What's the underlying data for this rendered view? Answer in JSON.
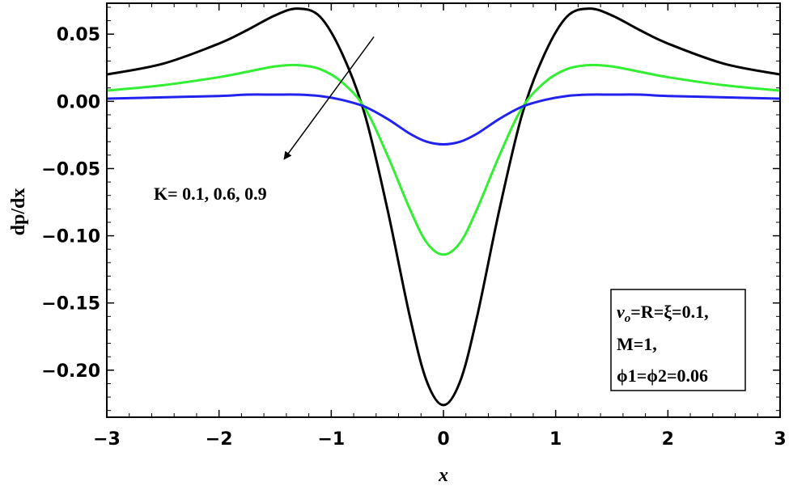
{
  "chart_data": {
    "type": "line",
    "title": "",
    "xlabel": "x",
    "ylabel": "dp/dx",
    "xlim": [
      -3,
      3
    ],
    "ylim": [
      -0.235,
      0.073
    ],
    "x_ticks": [
      -3,
      -2,
      -1,
      0,
      1,
      2,
      3
    ],
    "x_tick_labels": [
      "−3",
      "−2",
      "−1",
      "0",
      "1",
      "2",
      "3"
    ],
    "y_ticks": [
      0.05,
      0.0,
      -0.05,
      -0.1,
      -0.15,
      -0.2
    ],
    "y_tick_labels": [
      "0.05",
      "0.00",
      "−0.05",
      "−0.10",
      "−0.15",
      "−0.20"
    ],
    "grid": false,
    "x": [
      -3.0,
      -2.5,
      -2.0,
      -1.75,
      -1.5,
      -1.3,
      -1.1,
      -0.9,
      -0.7,
      -0.5,
      -0.3,
      -0.15,
      0.0,
      0.15,
      0.3,
      0.5,
      0.7,
      0.9,
      1.1,
      1.3,
      1.5,
      1.75,
      2.0,
      2.5,
      3.0
    ],
    "series": [
      {
        "color": "#000000",
        "values": [
          0.02,
          0.028,
          0.043,
          0.053,
          0.064,
          0.069,
          0.063,
          0.035,
          -0.01,
          -0.08,
          -0.16,
          -0.208,
          -0.226,
          -0.208,
          -0.16,
          -0.08,
          -0.01,
          0.035,
          0.063,
          0.069,
          0.064,
          0.053,
          0.043,
          0.028,
          0.02
        ]
      },
      {
        "color": "#33ee33",
        "values": [
          0.008,
          0.012,
          0.018,
          0.022,
          0.026,
          0.027,
          0.024,
          0.014,
          -0.005,
          -0.04,
          -0.08,
          -0.105,
          -0.114,
          -0.105,
          -0.08,
          -0.04,
          -0.005,
          0.014,
          0.024,
          0.027,
          0.026,
          0.022,
          0.018,
          0.012,
          0.008
        ]
      },
      {
        "color": "#2222ee",
        "values": [
          0.002,
          0.003,
          0.004,
          0.005,
          0.005,
          0.005,
          0.004,
          0.001,
          -0.004,
          -0.013,
          -0.024,
          -0.03,
          -0.032,
          -0.03,
          -0.024,
          -0.013,
          -0.004,
          0.001,
          0.004,
          0.005,
          0.005,
          0.005,
          0.004,
          0.003,
          0.002
        ]
      }
    ],
    "annotations": {
      "k_label": "K= 0.1, 0.6, 0.9",
      "arrow": {
        "from": [
          -0.62,
          0.048
        ],
        "to": [
          -1.42,
          -0.043
        ]
      },
      "params": {
        "line1_sym": "v",
        "line1_sub": "o",
        "line1_rest": "=R=ξ=0.1,",
        "line2": "M=1,",
        "line3": "ϕ1=ϕ2=0.06"
      }
    }
  }
}
